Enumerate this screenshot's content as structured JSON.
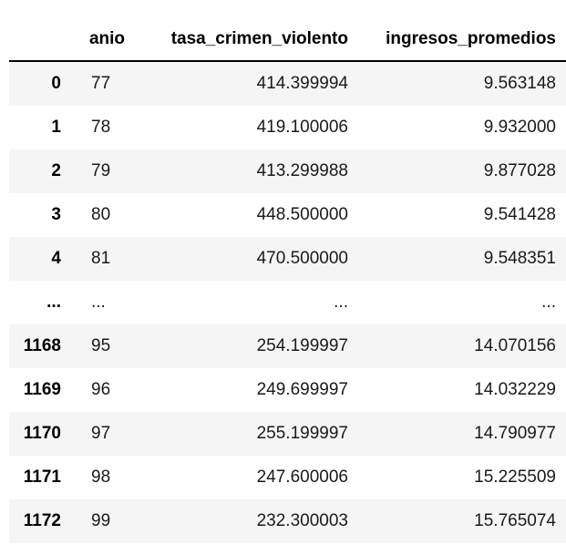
{
  "dataframe": {
    "columns": {
      "index": "",
      "anio": "anio",
      "tasa": "tasa_crimen_violento",
      "ingresos": "ingresos_promedios"
    },
    "rows": [
      {
        "index": "0",
        "anio": "77",
        "tasa": "414.399994",
        "ingresos": "9.563148"
      },
      {
        "index": "1",
        "anio": "78",
        "tasa": "419.100006",
        "ingresos": "9.932000"
      },
      {
        "index": "2",
        "anio": "79",
        "tasa": "413.299988",
        "ingresos": "9.877028"
      },
      {
        "index": "3",
        "anio": "80",
        "tasa": "448.500000",
        "ingresos": "9.541428"
      },
      {
        "index": "4",
        "anio": "81",
        "tasa": "470.500000",
        "ingresos": "9.548351"
      },
      {
        "index": "...",
        "anio": "...",
        "tasa": "...",
        "ingresos": "..."
      },
      {
        "index": "1168",
        "anio": "95",
        "tasa": "254.199997",
        "ingresos": "14.070156"
      },
      {
        "index": "1169",
        "anio": "96",
        "tasa": "249.699997",
        "ingresos": "14.032229"
      },
      {
        "index": "1170",
        "anio": "97",
        "tasa": "255.199997",
        "ingresos": "14.790977"
      },
      {
        "index": "1171",
        "anio": "98",
        "tasa": "247.600006",
        "ingresos": "15.225509"
      },
      {
        "index": "1172",
        "anio": "99",
        "tasa": "232.300003",
        "ingresos": "15.765074"
      }
    ]
  }
}
